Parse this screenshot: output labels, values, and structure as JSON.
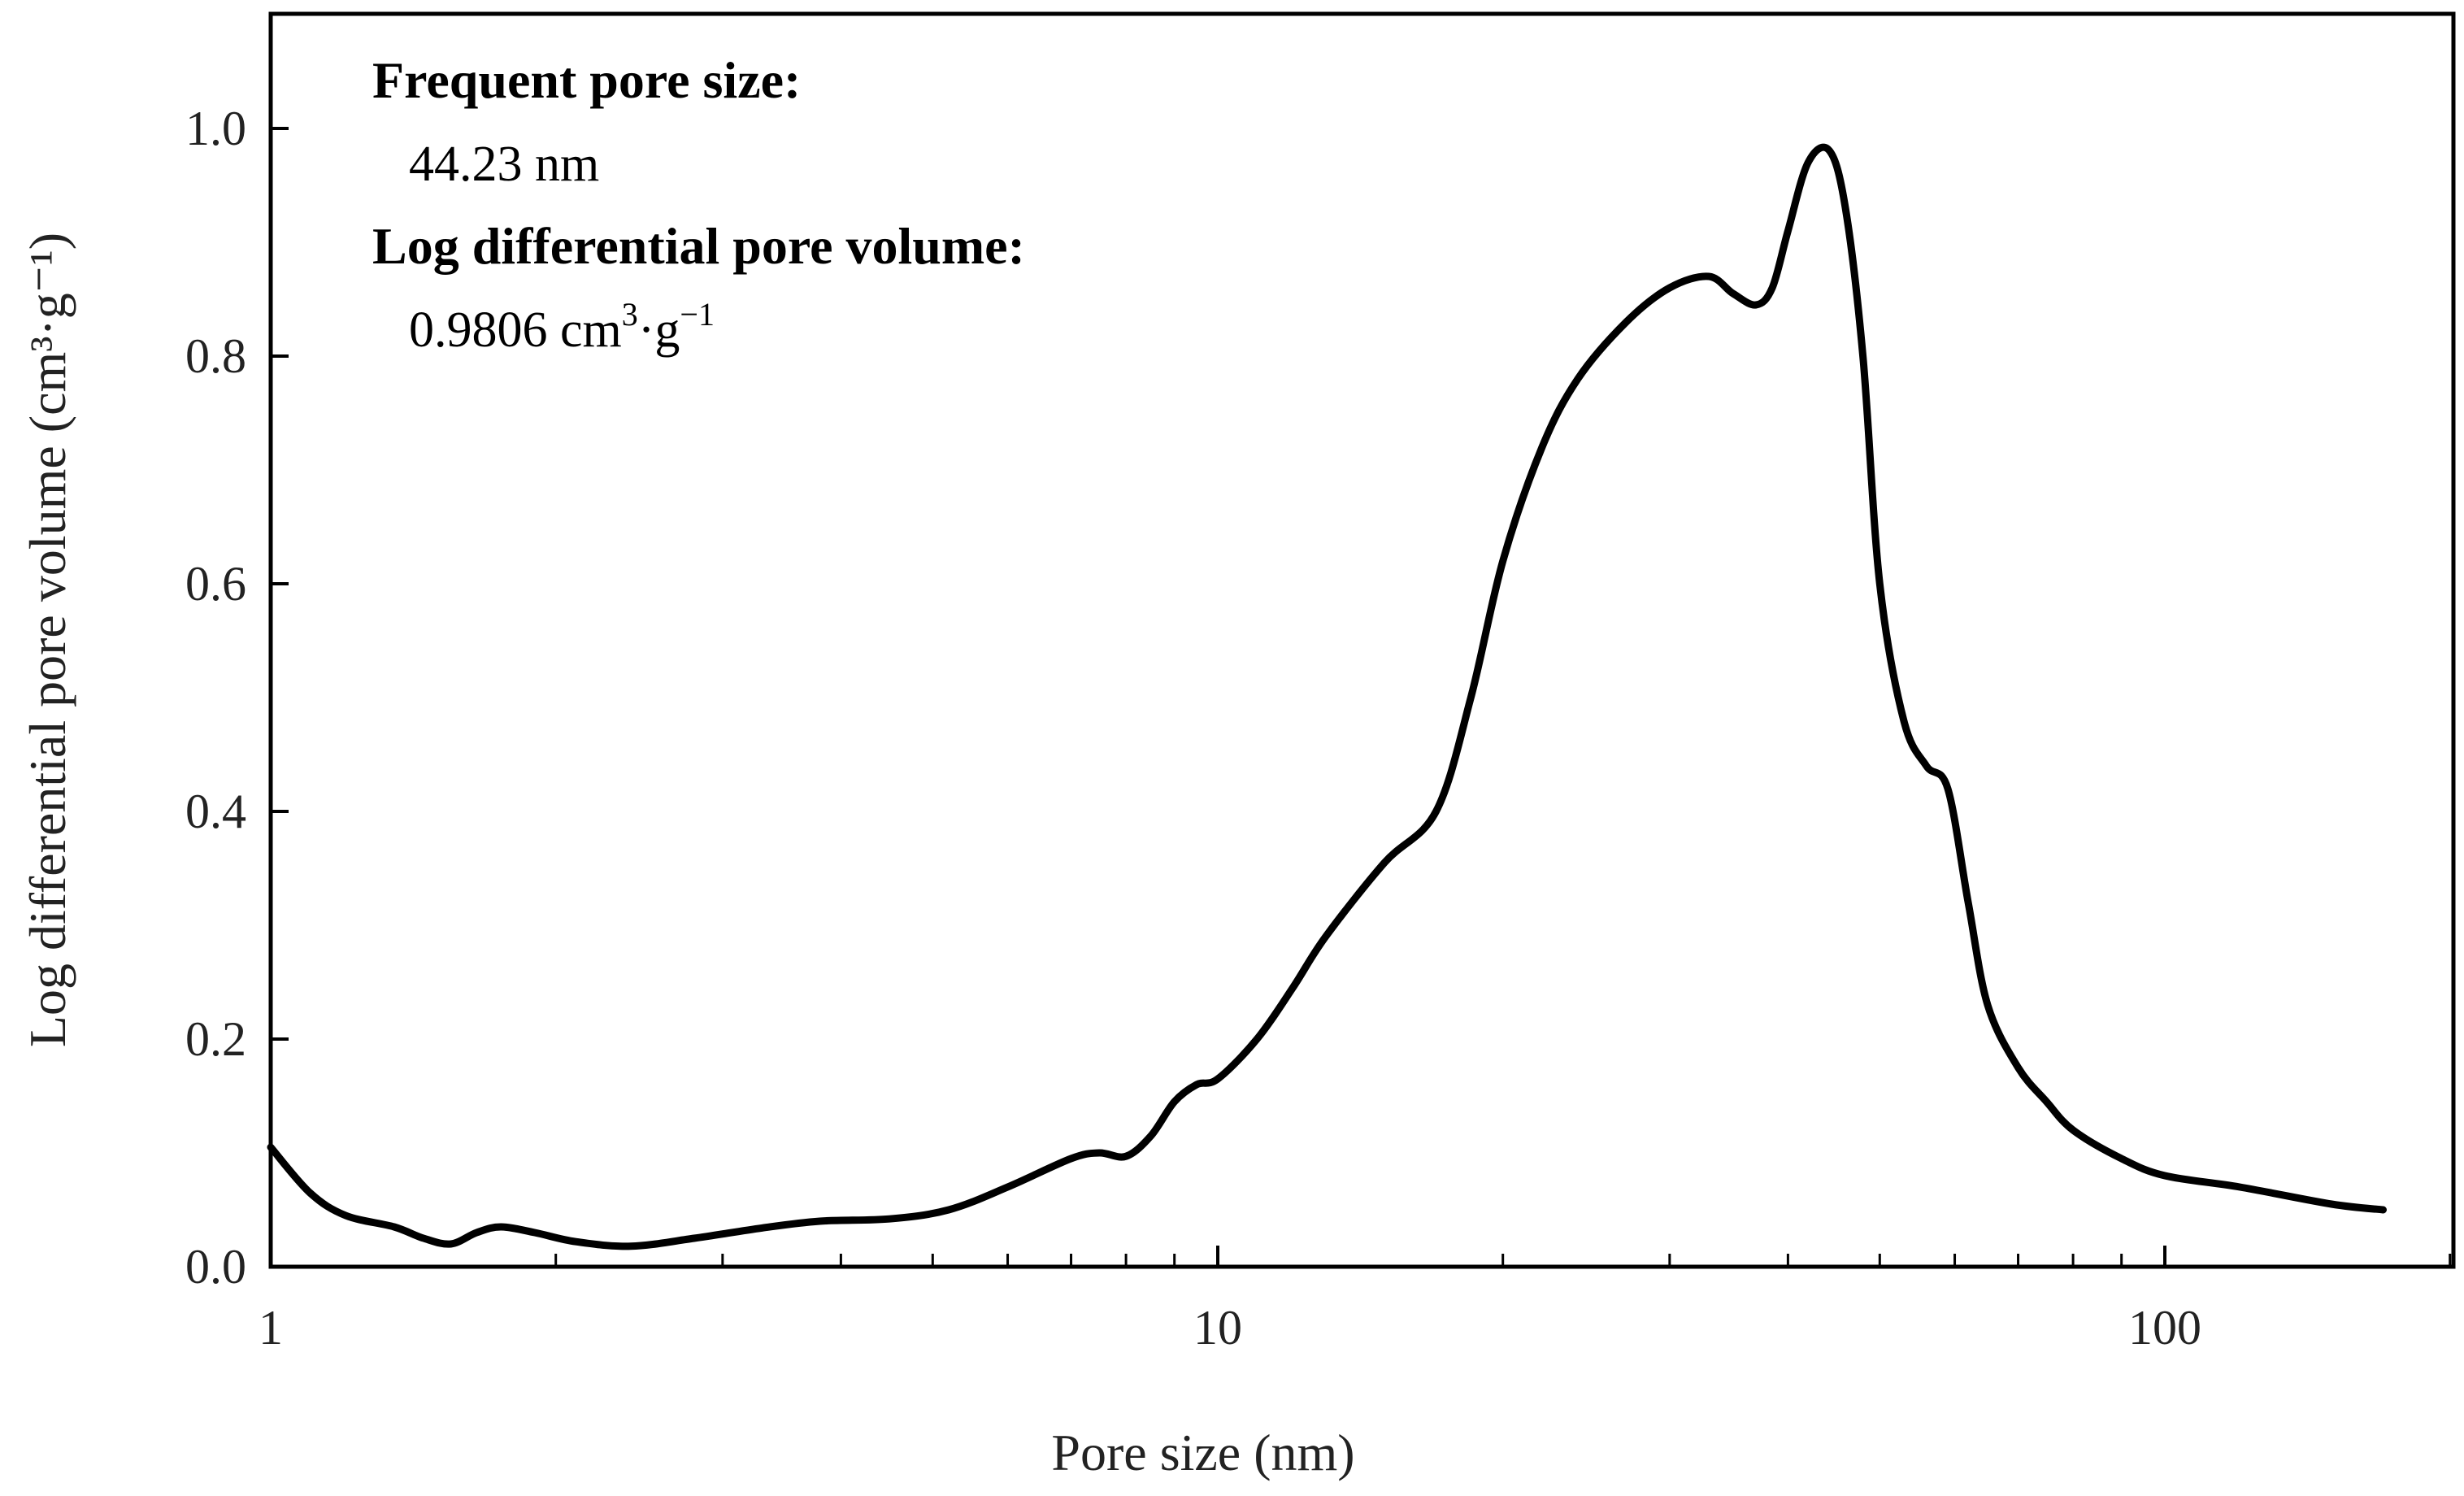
{
  "chart_data": {
    "type": "line",
    "title": "",
    "xlabel": "Pore size (nm)",
    "ylabel": "Log differential pore volume (cm³·g⁻¹)",
    "xscale": "log",
    "xlim": [
      1,
      200
    ],
    "ylim": [
      0,
      1.1
    ],
    "x_ticks": [
      1,
      10,
      100
    ],
    "x_tick_labels": [
      "1",
      "10",
      "100"
    ],
    "y_ticks": [
      0,
      0.2,
      0.4,
      0.6,
      0.8,
      1.0
    ],
    "y_tick_labels": [
      "0.0",
      "0.2",
      "0.4",
      "0.6",
      "0.8",
      "1.0"
    ],
    "grid": false,
    "line_color": "#000000",
    "annotation": {
      "frequent_label": "Frequent pore size:",
      "frequent_value": "44.23 nm",
      "volume_label": "Log differential pore volume:",
      "volume_value_base": "0.9806 cm",
      "volume_value_sup1": "3",
      "volume_value_mid": "·g",
      "volume_value_sup2": "−1"
    },
    "series": [
      {
        "x": [
          1.0,
          1.1,
          1.2,
          1.35,
          1.45,
          1.55,
          1.65,
          1.75,
          1.9,
          2.1,
          2.4,
          2.8,
          3.3,
          3.8,
          4.5,
          5.2,
          6.0,
          7.0,
          7.5,
          8.0,
          8.5,
          9.0,
          9.5,
          10.0,
          11.0,
          12.0,
          13.0,
          15.0,
          17.0,
          18.5,
          20.0,
          22.0,
          24.0,
          27.0,
          30.0,
          33.0,
          35.0,
          37.0,
          38.5,
          40.0,
          42.0,
          44.23,
          46.0,
          48.0,
          50.0,
          53.0,
          56.0,
          59.0,
          62.0,
          65.0,
          70.0,
          75.0,
          80.0,
          90.0,
          100.0,
          120.0,
          150.0,
          170.0
        ],
        "y": [
          0.105,
          0.065,
          0.045,
          0.035,
          0.025,
          0.02,
          0.03,
          0.035,
          0.03,
          0.022,
          0.018,
          0.025,
          0.034,
          0.04,
          0.042,
          0.05,
          0.07,
          0.095,
          0.1,
          0.097,
          0.115,
          0.145,
          0.16,
          0.165,
          0.2,
          0.245,
          0.29,
          0.355,
          0.4,
          0.5,
          0.62,
          0.72,
          0.78,
          0.83,
          0.86,
          0.87,
          0.855,
          0.845,
          0.86,
          0.91,
          0.97,
          0.9806,
          0.93,
          0.8,
          0.6,
          0.48,
          0.44,
          0.42,
          0.32,
          0.23,
          0.175,
          0.145,
          0.12,
          0.095,
          0.08,
          0.07,
          0.055,
          0.05
        ]
      }
    ]
  }
}
